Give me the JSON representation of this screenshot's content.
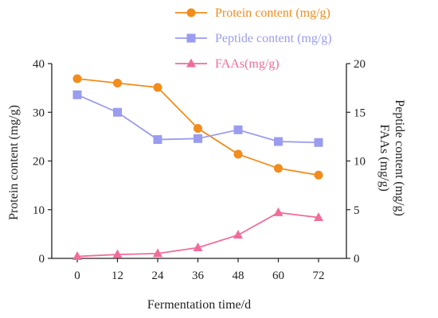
{
  "chart_data": {
    "type": "line",
    "x": [
      0,
      12,
      24,
      36,
      48,
      60,
      72
    ],
    "xlabel": "Fermentation time/d",
    "ylabel_left": "Protein content (mg/g)",
    "ylabel_right": [
      "FAAs (mg/g)",
      "Peptide content (mg/g)"
    ],
    "ylim_left": [
      0,
      40
    ],
    "ylim_right": [
      0,
      20
    ],
    "yticks_left": [
      0,
      10,
      20,
      30,
      40
    ],
    "yticks_right": [
      0,
      5,
      10,
      15,
      20
    ],
    "grid": false,
    "legend_position": "top-right",
    "series": [
      {
        "name": "Protein content (mg/g)",
        "axis": "left",
        "color": "#F28C1C",
        "marker": "circle",
        "values": [
          36.9,
          36.0,
          35.1,
          26.7,
          21.4,
          18.5,
          17.1
        ]
      },
      {
        "name": "Peptide content (mg/g)",
        "axis": "right",
        "color": "#9A9CF0",
        "marker": "square",
        "values": [
          16.8,
          15.0,
          12.2,
          12.3,
          13.2,
          12.0,
          11.9
        ]
      },
      {
        "name": "FAAs(mg/g)",
        "axis": "right",
        "color": "#F06C9B",
        "marker": "triangle",
        "values": [
          0.2,
          0.4,
          0.5,
          1.1,
          2.4,
          4.7,
          4.2
        ]
      }
    ]
  }
}
